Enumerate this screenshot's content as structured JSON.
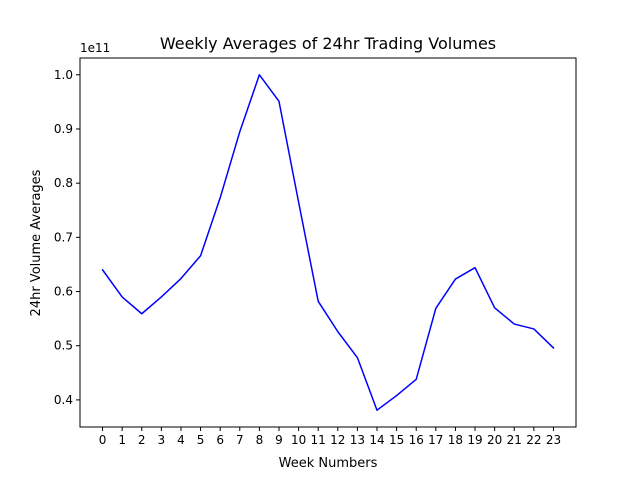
{
  "chart_data": {
    "type": "line",
    "title": "Weekly Averages of 24hr Trading Volumes",
    "xlabel": "Week Numbers",
    "ylabel": "24hr Volume Averages",
    "offset_label": "1e11",
    "x": [
      0,
      1,
      2,
      3,
      4,
      5,
      6,
      7,
      8,
      9,
      10,
      11,
      12,
      13,
      14,
      15,
      16,
      17,
      18,
      19,
      20,
      21,
      22,
      23
    ],
    "xticks": [
      "0",
      "1",
      "2",
      "3",
      "4",
      "5",
      "6",
      "7",
      "8",
      "9",
      "10",
      "11",
      "12",
      "13",
      "14",
      "15",
      "16",
      "17",
      "18",
      "19",
      "20",
      "21",
      "22",
      "23"
    ],
    "yticks": [
      0.4,
      0.5,
      0.6,
      0.7,
      0.8,
      0.9,
      1.0
    ],
    "ytick_labels": [
      "0.4",
      "0.5",
      "0.6",
      "0.7",
      "0.8",
      "0.9",
      "1.0"
    ],
    "xlim": [
      -1.15,
      24.15
    ],
    "ylim": [
      0.35,
      1.031
    ],
    "grid": false,
    "series": [
      {
        "color": "#0000ff",
        "values": [
          0.64,
          0.59,
          0.559,
          0.59,
          0.624,
          0.666,
          0.773,
          0.895,
          1.0,
          0.951,
          0.765,
          0.582,
          0.526,
          0.478,
          0.381,
          0.408,
          0.438,
          0.569,
          0.623,
          0.644,
          0.57,
          0.54,
          0.531,
          0.496
        ]
      }
    ]
  }
}
